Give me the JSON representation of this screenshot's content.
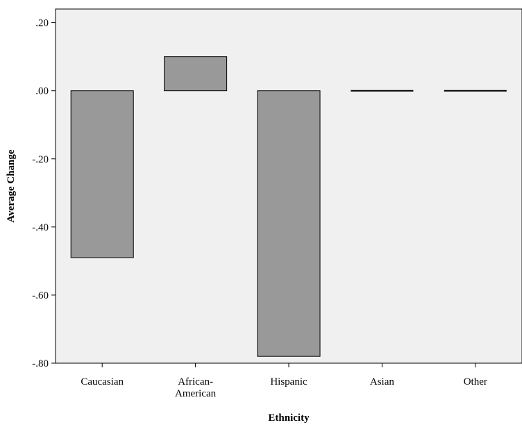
{
  "chart_data": {
    "type": "bar",
    "xlabel": "Ethnicity",
    "ylabel": "Average Change",
    "categories": [
      "Caucasian",
      "African-American",
      "Hispanic",
      "Asian",
      "Other"
    ],
    "category_label_lines": [
      [
        "Caucasian"
      ],
      [
        "African-",
        "American"
      ],
      [
        "Hispanic"
      ],
      [
        "Asian"
      ],
      [
        "Other"
      ]
    ],
    "values": [
      -0.49,
      0.1,
      -0.78,
      0.0,
      0.0
    ],
    "ylim": [
      -0.8,
      0.24
    ],
    "yticks": [
      0.2,
      0.0,
      -0.2,
      -0.4,
      -0.6,
      -0.8
    ],
    "ytick_labels": [
      ".20",
      ".00",
      "-.20",
      "-.40",
      "-.60",
      "-.80"
    ],
    "grid": false,
    "colors": {
      "plot_bg": "#f0f0f0",
      "bar_fill": "#999999",
      "bar_stroke": "#000000"
    }
  }
}
